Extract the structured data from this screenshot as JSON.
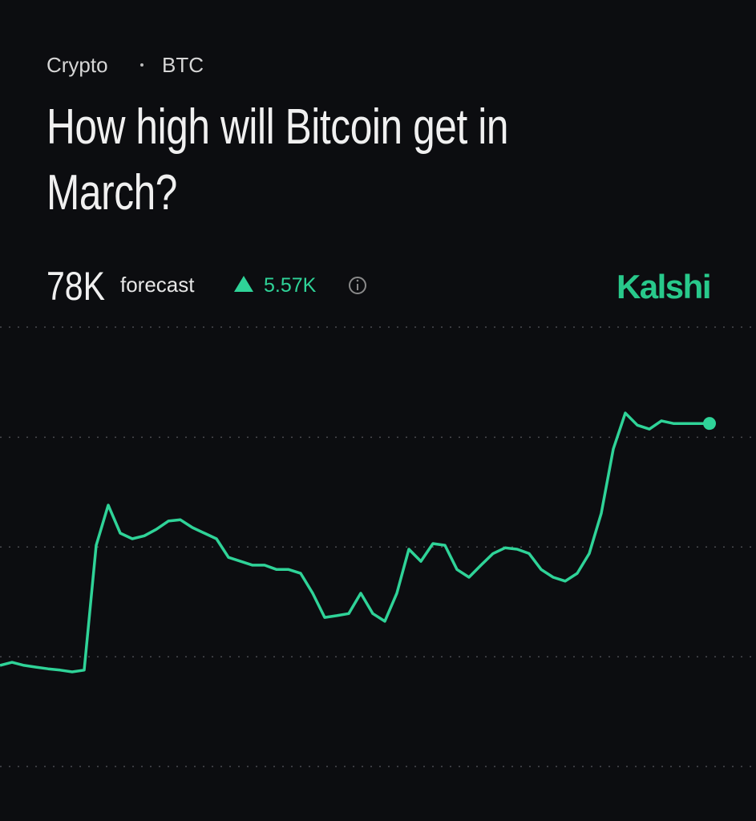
{
  "chart_data": {
    "type": "line",
    "category": "Crypto",
    "ticker": "BTC",
    "title": "How high will Bitcoin get in March?",
    "forecast_value": "78K",
    "forecast_label": "forecast",
    "change": "5.57K",
    "brand": "Kalshi",
    "color": "#2fd398",
    "grid": true,
    "ylim": [
      70.06,
      80.23
    ],
    "yticks": [
      70.06,
      72.6,
      75.14,
      77.68,
      80.23
    ],
    "values": [
      72.4,
      72.47,
      72.4,
      72.36,
      72.32,
      72.29,
      72.25,
      72.29,
      75.18,
      76.11,
      75.46,
      75.33,
      75.4,
      75.55,
      75.74,
      75.77,
      75.59,
      75.46,
      75.33,
      74.9,
      74.81,
      74.72,
      74.72,
      74.62,
      74.62,
      74.53,
      74.07,
      73.51,
      73.55,
      73.6,
      74.07,
      73.6,
      73.42,
      74.07,
      75.09,
      74.81,
      75.22,
      75.18,
      74.62,
      74.44,
      74.72,
      74.99,
      75.12,
      75.09,
      74.99,
      74.62,
      74.44,
      74.35,
      74.53,
      74.99,
      75.92,
      77.41,
      78.24,
      77.96,
      77.87,
      78.06,
      78,
      78,
      78,
      78
    ]
  }
}
